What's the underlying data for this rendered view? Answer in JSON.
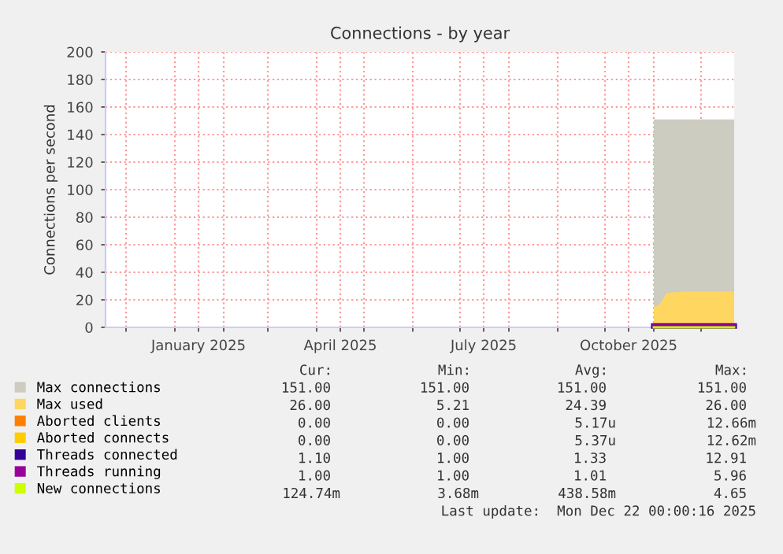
{
  "chart_data": {
    "type": "area",
    "title": "Connections - by year",
    "ylabel": "Connections per second",
    "xlim": [
      "2024-11-18",
      "2025-12-22"
    ],
    "ylim": [
      0,
      200
    ],
    "yticks": [
      0,
      20,
      40,
      60,
      80,
      100,
      120,
      140,
      160,
      180,
      200
    ],
    "xticks": [
      {
        "value": "2024-12-01",
        "label": null
      },
      {
        "value": "2025-01-01",
        "label": null
      },
      {
        "value": "2025-01-16",
        "label": "January 2025"
      },
      {
        "value": "2025-02-01",
        "label": null
      },
      {
        "value": "2025-03-01",
        "label": null
      },
      {
        "value": "2025-04-01",
        "label": null
      },
      {
        "value": "2025-04-16",
        "label": "April 2025"
      },
      {
        "value": "2025-05-01",
        "label": null
      },
      {
        "value": "2025-06-01",
        "label": null
      },
      {
        "value": "2025-07-01",
        "label": null
      },
      {
        "value": "2025-07-16",
        "label": "July 2025"
      },
      {
        "value": "2025-08-01",
        "label": null
      },
      {
        "value": "2025-09-01",
        "label": null
      },
      {
        "value": "2025-10-01",
        "label": null
      },
      {
        "value": "2025-10-16",
        "label": "October 2025"
      },
      {
        "value": "2025-11-01",
        "label": null
      },
      {
        "value": "2025-12-01",
        "label": null
      }
    ],
    "grid": true,
    "legend": "bottom",
    "series": [
      {
        "name": "Max connections",
        "color": "#ccccc0",
        "x": [
          "2025-11-01",
          "2025-12-22"
        ],
        "values": [
          151,
          151
        ]
      },
      {
        "name": "Max used",
        "type": "area",
        "color": "#ffd660",
        "x": [
          "2025-11-01",
          "2025-11-04",
          "2025-11-06",
          "2025-11-09",
          "2025-11-20",
          "2025-12-22"
        ],
        "values": [
          15,
          16,
          19,
          25,
          26,
          26
        ]
      },
      {
        "name": "Aborted clients",
        "type": "line",
        "color": "#ff7f00",
        "values": [
          null
        ]
      },
      {
        "name": "Aborted connects",
        "type": "line",
        "color": "#ffcc00",
        "values": [
          null
        ]
      },
      {
        "name": "Threads connected",
        "type": "line",
        "color": "#330099",
        "x": [
          "2025-11-01",
          "2025-12-22"
        ],
        "values": [
          1,
          1
        ]
      },
      {
        "name": "Threads running",
        "type": "line",
        "color": "#990099",
        "x": [
          "2025-11-01",
          "2025-12-22"
        ],
        "values": [
          1,
          1
        ]
      },
      {
        "name": "New connections",
        "type": "line",
        "color": "#ccff00",
        "x": [
          "2025-11-01",
          "2025-12-22"
        ],
        "values": [
          0,
          0
        ]
      }
    ],
    "annotations": [
      "Cur:",
      "Min:",
      "Avg:",
      "Max:",
      "151.00",
      "151.00",
      "151.00",
      "151.00",
      "26.00",
      "5.21",
      "24.39",
      "26.00",
      "0.00",
      "0.00",
      "5.17u",
      "12.66m",
      "0.00",
      "0.00",
      "5.37u",
      "12.62m",
      "1.10",
      "1.00",
      "1.33",
      "12.91",
      "1.00",
      "1.00",
      "1.01",
      "5.96",
      "124.74m",
      "3.68m",
      "438.58m",
      "4.65",
      "Last update:  Mon Dec 22 00:00:16 2025"
    ]
  }
}
